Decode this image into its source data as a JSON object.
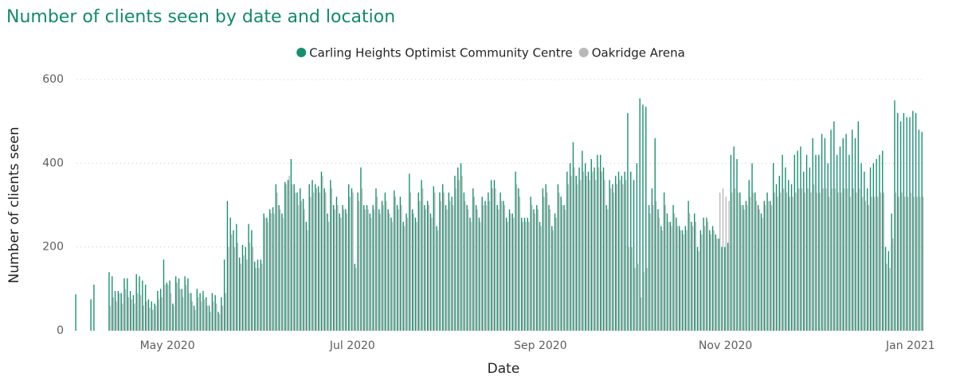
{
  "chart_data": {
    "type": "bar",
    "title": "Number of clients seen by date and location",
    "x_label": "Date",
    "y_label": "Number of clients seen",
    "legend": "top",
    "grid": true,
    "ylim": [
      0,
      600
    ],
    "yticks": [
      0,
      200,
      400,
      600
    ],
    "categories": [
      null,
      null,
      null,
      null,
      null,
      null,
      null,
      null,
      null,
      null,
      null,
      null,
      null,
      null,
      null,
      null,
      null,
      null,
      null,
      null,
      null,
      null,
      null,
      null,
      null,
      null,
      null,
      null,
      null,
      null,
      "May 2020",
      null,
      null,
      null,
      null,
      null,
      null,
      null,
      null,
      null,
      null,
      null,
      null,
      null,
      null,
      null,
      null,
      null,
      null,
      null,
      null,
      null,
      null,
      null,
      null,
      null,
      null,
      null,
      null,
      null,
      null,
      null,
      null,
      null,
      null,
      null,
      null,
      null,
      null,
      null,
      null,
      null,
      null,
      null,
      null,
      null,
      null,
      null,
      null,
      null,
      null,
      null,
      null,
      null,
      null,
      null,
      null,
      null,
      null,
      null,
      null,
      "Jul 2020",
      null,
      null,
      null,
      null,
      null,
      null,
      null,
      null,
      null,
      null,
      null,
      null,
      null,
      null,
      null,
      null,
      null,
      null,
      null,
      null,
      null,
      null,
      null,
      null,
      null,
      null,
      null,
      null,
      null,
      null,
      null,
      null,
      null,
      null,
      null,
      null,
      null,
      null,
      null,
      null,
      null,
      null,
      null,
      null,
      null,
      null,
      null,
      null,
      null,
      null,
      null,
      null,
      null,
      null,
      null,
      null,
      null,
      null,
      null,
      null,
      null,
      "Sep 2020",
      null,
      null,
      null,
      null,
      null,
      null,
      null,
      null,
      null,
      null,
      null,
      null,
      null,
      null,
      null,
      null,
      null,
      null,
      null,
      null,
      null,
      null,
      null,
      null,
      null,
      null,
      null,
      null,
      null,
      null,
      null,
      null,
      null,
      null,
      null,
      null,
      null,
      null,
      null,
      null,
      null,
      null,
      null,
      null,
      null,
      null,
      null,
      null,
      null,
      null,
      null,
      null,
      null,
      null,
      null,
      null,
      null,
      null,
      null,
      null,
      "Nov 2020",
      null,
      null,
      null,
      null,
      null,
      null,
      null,
      null,
      null,
      null,
      null,
      null,
      null,
      null,
      null,
      null,
      null,
      null,
      null,
      null,
      null,
      null,
      null,
      null,
      null,
      null,
      null,
      null,
      null,
      null,
      null,
      null,
      null,
      null,
      null,
      null,
      null,
      null,
      null,
      null,
      null,
      null,
      null,
      null,
      null,
      null,
      null,
      null,
      null,
      null,
      null,
      null,
      null,
      null,
      null,
      null,
      null,
      null,
      null,
      null,
      "Jan 2021",
      null,
      null,
      null,
      null
    ],
    "series": [
      {
        "name": "Carling Heights Optimist Community Centre",
        "color": "#168f6f",
        "values": [
          87,
          null,
          null,
          null,
          null,
          75,
          110,
          null,
          null,
          null,
          null,
          140,
          130,
          95,
          95,
          90,
          125,
          125,
          95,
          85,
          135,
          130,
          120,
          110,
          75,
          70,
          65,
          95,
          100,
          170,
          115,
          120,
          65,
          130,
          125,
          100,
          130,
          125,
          90,
          60,
          100,
          90,
          95,
          80,
          60,
          90,
          85,
          45,
          80,
          170,
          310,
          270,
          240,
          255,
          175,
          205,
          200,
          255,
          240,
          165,
          170,
          170,
          280,
          270,
          290,
          295,
          350,
          300,
          280,
          355,
          360,
          410,
          350,
          330,
          340,
          315,
          260,
          350,
          360,
          350,
          345,
          380,
          340,
          280,
          360,
          300,
          320,
          280,
          300,
          290,
          350,
          340,
          160,
          330,
          390,
          300,
          300,
          280,
          300,
          340,
          290,
          310,
          330,
          290,
          270,
          335,
          300,
          320,
          260,
          280,
          375,
          290,
          270,
          330,
          360,
          300,
          310,
          280,
          345,
          250,
          330,
          350,
          300,
          330,
          320,
          370,
          390,
          400,
          330,
          300,
          270,
          340,
          300,
          270,
          320,
          310,
          330,
          360,
          360,
          300,
          330,
          310,
          270,
          290,
          280,
          380,
          340,
          270,
          270,
          270,
          320,
          290,
          300,
          260,
          340,
          350,
          300,
          250,
          280,
          350,
          320,
          300,
          380,
          400,
          450,
          370,
          390,
          430,
          400,
          380,
          410,
          390,
          420,
          420,
          390,
          300,
          360,
          350,
          370,
          380,
          370,
          380,
          520,
          380,
          360,
          400,
          555,
          540,
          535,
          300,
          340,
          460,
          290,
          250,
          330,
          280,
          260,
          300,
          270,
          250,
          240,
          250,
          310,
          260,
          280,
          200,
          240,
          270,
          270,
          240,
          250,
          230,
          220,
          200,
          200,
          210,
          420,
          440,
          410,
          330,
          300,
          310,
          360,
          400,
          330,
          300,
          280,
          310,
          330,
          310,
          400,
          350,
          370,
          420,
          390,
          360,
          350,
          420,
          430,
          440,
          380,
          420,
          390,
          460,
          420,
          420,
          470,
          460,
          400,
          480,
          500,
          420,
          440,
          460,
          470,
          420,
          480,
          460,
          500,
          400,
          380,
          340,
          390,
          400,
          410,
          420,
          430,
          200,
          190,
          280,
          550,
          520,
          500,
          520,
          510,
          510,
          525,
          520,
          480,
          475
        ]
      },
      {
        "name": "Oakridge Arena",
        "color": "#b8b8b8",
        "values": [
          null,
          null,
          null,
          null,
          null,
          null,
          null,
          null,
          null,
          null,
          null,
          60,
          80,
          70,
          90,
          65,
          100,
          80,
          75,
          65,
          90,
          85,
          60,
          70,
          55,
          50,
          60,
          75,
          80,
          110,
          110,
          90,
          60,
          115,
          100,
          80,
          110,
          90,
          70,
          50,
          80,
          70,
          75,
          60,
          45,
          70,
          65,
          40,
          60,
          90,
          200,
          230,
          200,
          210,
          160,
          180,
          170,
          210,
          200,
          150,
          150,
          160,
          270,
          260,
          280,
          280,
          330,
          290,
          270,
          350,
          370,
          350,
          330,
          300,
          310,
          290,
          240,
          320,
          330,
          340,
          330,
          370,
          330,
          260,
          340,
          290,
          300,
          270,
          290,
          280,
          320,
          330,
          150,
          310,
          340,
          290,
          290,
          270,
          290,
          320,
          280,
          300,
          310,
          280,
          260,
          320,
          290,
          300,
          250,
          270,
          330,
          280,
          260,
          310,
          340,
          290,
          300,
          270,
          330,
          240,
          310,
          330,
          290,
          310,
          300,
          340,
          360,
          370,
          310,
          290,
          260,
          320,
          290,
          260,
          300,
          300,
          310,
          340,
          340,
          290,
          310,
          300,
          260,
          280,
          270,
          350,
          320,
          260,
          260,
          260,
          300,
          280,
          290,
          250,
          320,
          330,
          290,
          240,
          270,
          330,
          300,
          290,
          350,
          370,
          390,
          350,
          360,
          380,
          370,
          360,
          380,
          360,
          390,
          380,
          360,
          290,
          340,
          330,
          350,
          360,
          350,
          360,
          200,
          200,
          150,
          160,
          80,
          140,
          150,
          280,
          300,
          310,
          270,
          240,
          300,
          260,
          250,
          280,
          250,
          240,
          230,
          240,
          280,
          250,
          260,
          190,
          230,
          250,
          260,
          230,
          240,
          220,
          330,
          340,
          320,
          310,
          330,
          340,
          330,
          300,
          290,
          300,
          320,
          330,
          310,
          290,
          270,
          300,
          310,
          300,
          330,
          320,
          330,
          340,
          330,
          320,
          320,
          330,
          340,
          340,
          330,
          340,
          330,
          350,
          330,
          330,
          340,
          340,
          320,
          340,
          340,
          330,
          330,
          340,
          340,
          320,
          340,
          330,
          340,
          320,
          310,
          300,
          320,
          320,
          320,
          330,
          330,
          160,
          150,
          220,
          330,
          320,
          330,
          320,
          320,
          330,
          320,
          320,
          320,
          320
        ]
      }
    ]
  }
}
